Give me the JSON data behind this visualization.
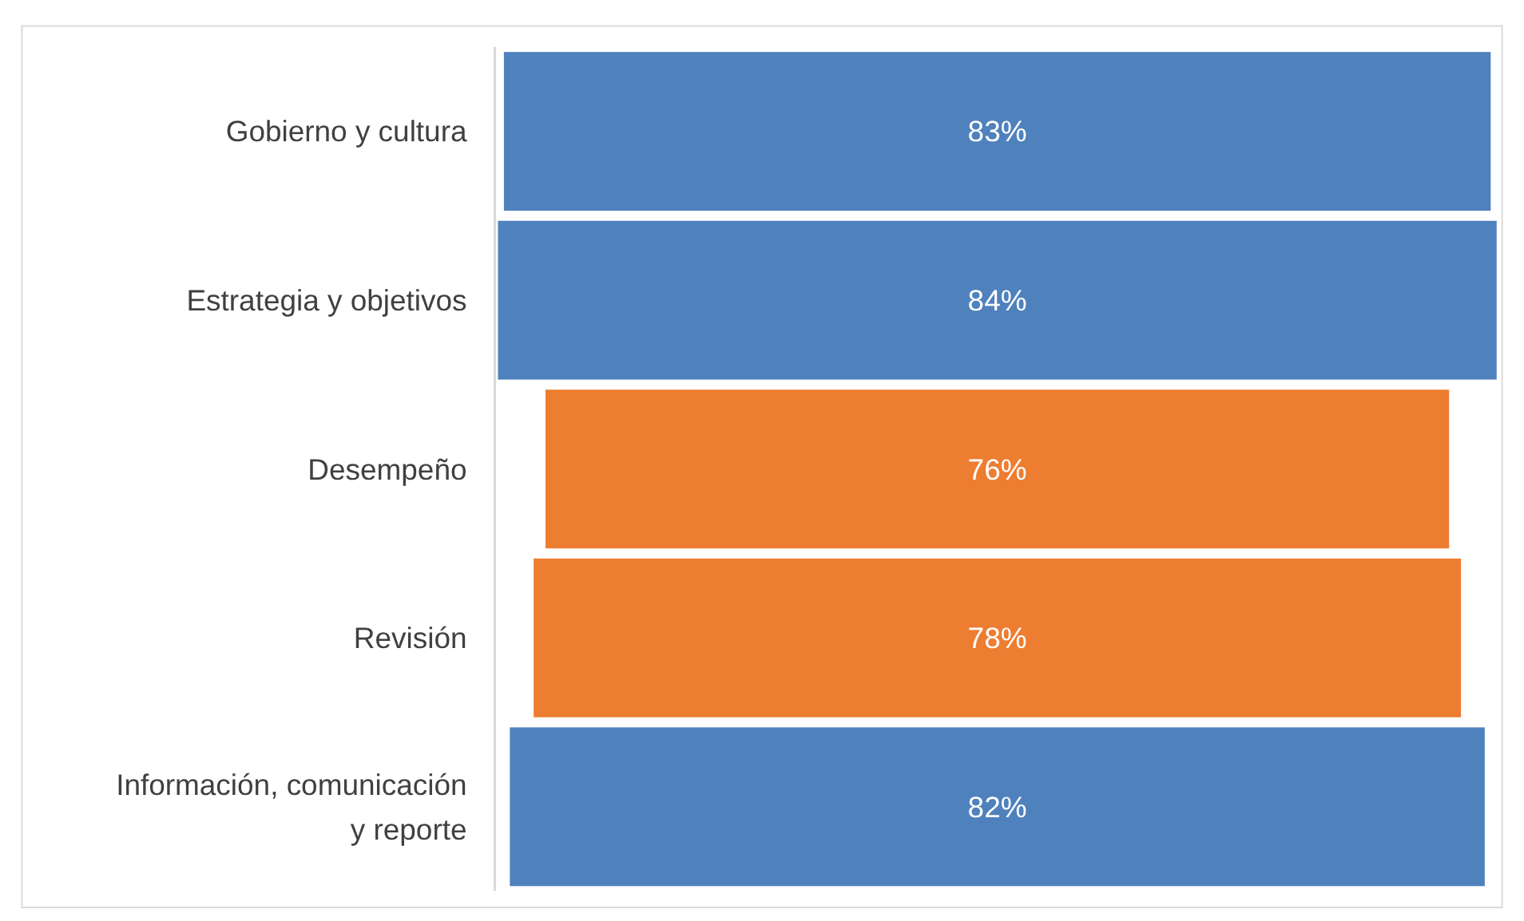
{
  "chart_data": {
    "type": "other",
    "categories": [
      "Gobierno y cultura",
      "Estrategia y objetivos",
      "Desempeño",
      "Revisión",
      "Información, comunicación y reporte"
    ],
    "values": [
      83,
      84,
      76,
      78,
      82
    ],
    "colors": [
      "#4f81bd",
      "#4f81bd",
      "#ed7d31",
      "#ed7d31",
      "#4f81bd"
    ],
    "value_labels": [
      "83%",
      "84%",
      "76%",
      "78%",
      "82%"
    ]
  }
}
